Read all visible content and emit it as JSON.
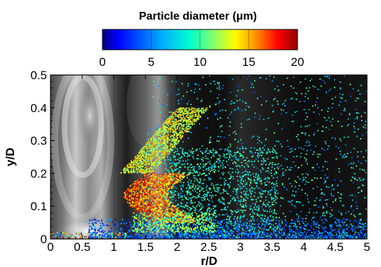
{
  "chart_data": {
    "type": "scatter",
    "title": "",
    "xlabel": "r/D",
    "ylabel": "y/D",
    "xlim": [
      0,
      5
    ],
    "ylim": [
      0,
      0.5
    ],
    "xticks": [
      "0",
      "0.5",
      "1",
      "1.5",
      "2",
      "2.5",
      "3",
      "3.5",
      "4",
      "4.5",
      "5"
    ],
    "yticks": [
      "0",
      "0.1",
      "0.2",
      "0.3",
      "0.4",
      "0.5"
    ],
    "background": "grayscale flow field contour (no legend)",
    "colorbar": {
      "title": "Particle diameter (μm)",
      "range": [
        0,
        20
      ],
      "ticks": [
        "0",
        "5",
        "10",
        "15",
        "20"
      ],
      "colormap": [
        "#0000b4",
        "#0040ff",
        "#00b4ff",
        "#00ffd2",
        "#7aff7a",
        "#ffff00",
        "#ff8c00",
        "#ff0000",
        "#8b0000"
      ],
      "placement": "top-center"
    },
    "point_groups": [
      {
        "name": "near-wall",
        "r_range": [
          0.6,
          5.0
        ],
        "y_range": [
          0.0,
          0.06
        ],
        "diameter_range": [
          0,
          8
        ]
      },
      {
        "name": "upper-arc",
        "r_range": [
          1.3,
          2.4
        ],
        "y_range": [
          0.2,
          0.4
        ],
        "diameter_range": [
          10,
          15
        ]
      },
      {
        "name": "lower-arc",
        "r_range": [
          1.1,
          2.4
        ],
        "y_range": [
          0.05,
          0.2
        ],
        "diameter_range": [
          14,
          20
        ]
      },
      {
        "name": "scattered",
        "r_range": [
          1.5,
          5.0
        ],
        "y_range": [
          0.0,
          0.5
        ],
        "diameter_range": [
          4,
          10
        ]
      }
    ]
  },
  "labels": {
    "cbar_title": "Particle diameter (μm)",
    "xlabel": "r/D",
    "ylabel": "y/D"
  },
  "colors": {
    "axis": "#000000",
    "background": "#ffffff"
  }
}
